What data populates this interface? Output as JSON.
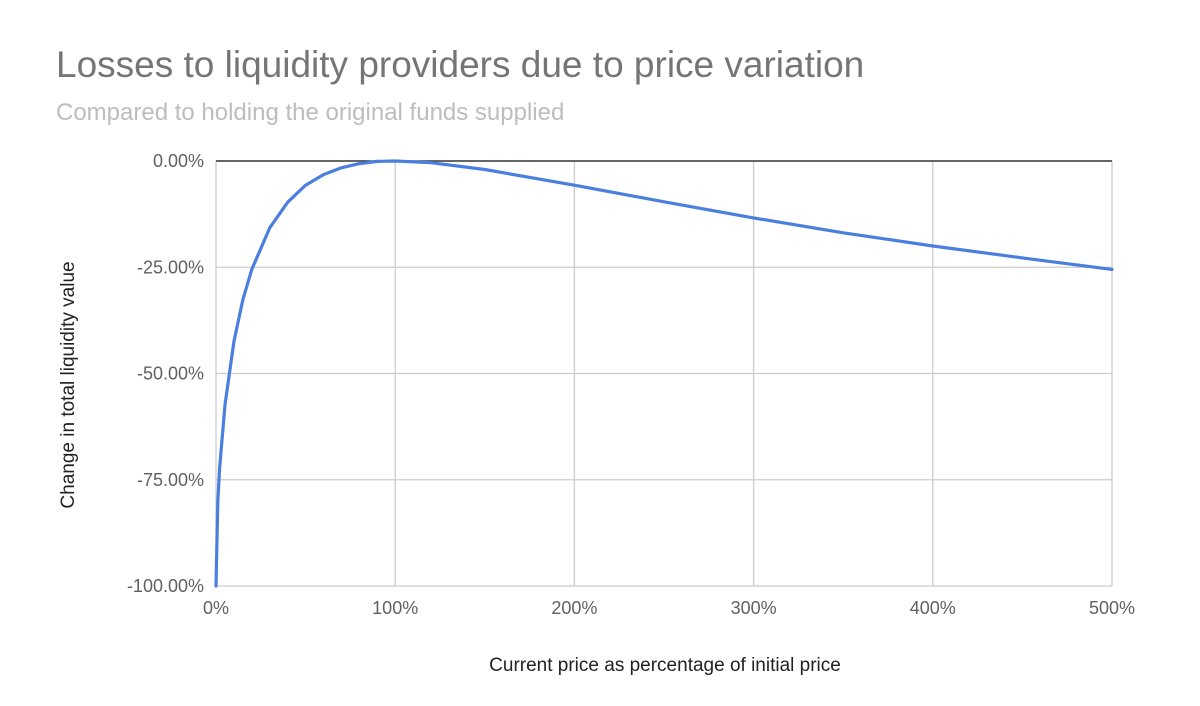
{
  "chart_data": {
    "type": "line",
    "title": "Losses to liquidity providers due to price variation",
    "subtitle": "Compared to holding the original funds supplied",
    "xlabel": "Current price as percentage of initial price",
    "ylabel": "Change in total liquidity value",
    "xlim": [
      0,
      500
    ],
    "ylim": [
      -100,
      0
    ],
    "x_ticks": [
      0,
      100,
      200,
      300,
      400,
      500
    ],
    "x_tick_labels": [
      "0%",
      "100%",
      "200%",
      "300%",
      "400%",
      "500%"
    ],
    "y_ticks": [
      0,
      -25,
      -50,
      -75,
      -100
    ],
    "y_tick_labels": [
      "0.00%",
      "-25.00%",
      "-50.00%",
      "-75.00%",
      "-100.00%"
    ],
    "grid": true,
    "legend": "none",
    "series": [
      {
        "color": "#4a7fe0",
        "x": [
          0,
          1,
          2,
          5,
          10,
          15,
          20,
          30,
          40,
          50,
          60,
          70,
          80,
          90,
          100,
          120,
          150,
          200,
          250,
          300,
          350,
          400,
          450,
          500
        ],
        "y": [
          -100,
          -80.2,
          -72.3,
          -57.4,
          -42.5,
          -32.6,
          -25.5,
          -15.7,
          -9.7,
          -5.7,
          -3.2,
          -1.6,
          -0.6,
          -0.1,
          0,
          -0.4,
          -2.0,
          -5.7,
          -9.6,
          -13.4,
          -16.9,
          -20.0,
          -22.8,
          -25.5
        ]
      }
    ]
  }
}
